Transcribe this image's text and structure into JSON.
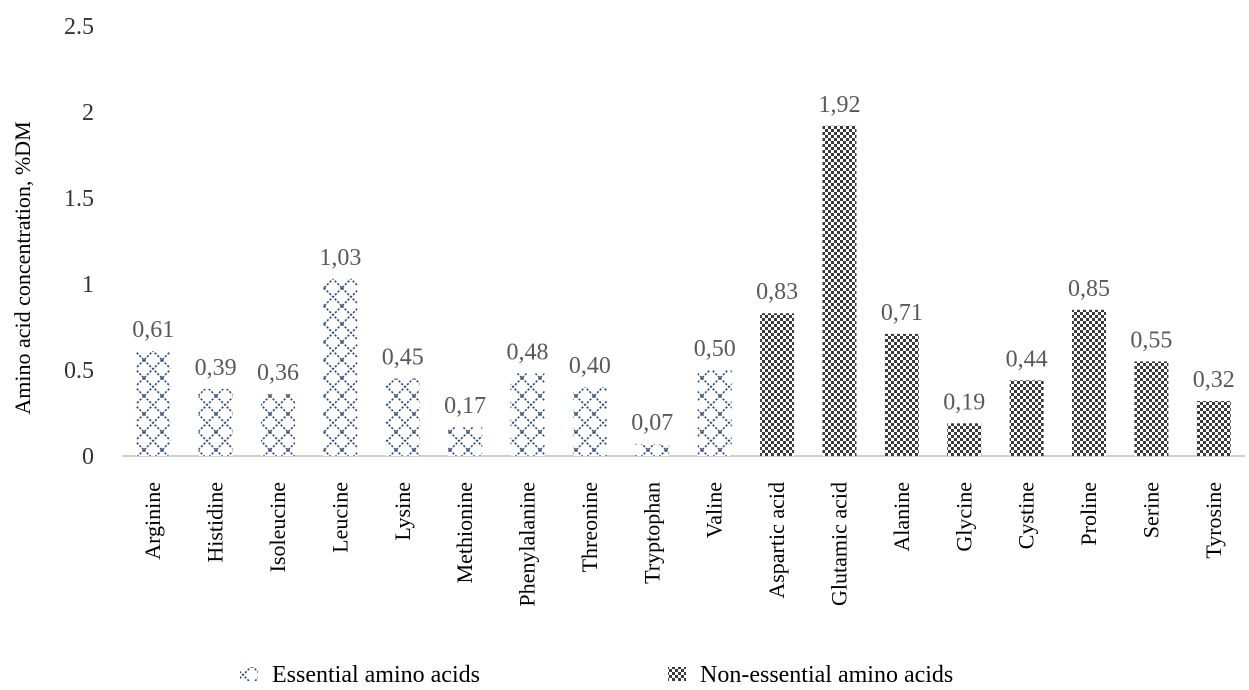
{
  "chart_data": {
    "type": "bar",
    "title": "",
    "xlabel": "",
    "ylabel": "Amino acid concentration, %DM",
    "ylim": [
      0,
      2.5
    ],
    "yticks": [
      "0",
      "0.5",
      "1",
      "1.5",
      "2",
      "2.5"
    ],
    "grid": false,
    "legend_position": "bottom",
    "categories": [
      "Arginine",
      "Histidine",
      "Isoleucine",
      "Leucine",
      "Lysine",
      "Methionine",
      "Phenylalanine",
      "Threonine",
      "Tryptophan",
      "Valine",
      "Aspartic acid",
      "Glutamic acid",
      "Alanine",
      "Glycine",
      "Cystine",
      "Proline",
      "Serine",
      "Tyrosine"
    ],
    "values": [
      0.61,
      0.39,
      0.36,
      1.03,
      0.45,
      0.17,
      0.48,
      0.4,
      0.07,
      0.5,
      0.83,
      1.92,
      0.71,
      0.19,
      0.44,
      0.85,
      0.55,
      0.32
    ],
    "value_labels": [
      "0,61",
      "0,39",
      "0,36",
      "1,03",
      "0,45",
      "0,17",
      "0,48",
      "0,40",
      "0,07",
      "0,50",
      "0,83",
      "1,92",
      "0,71",
      "0,19",
      "0,44",
      "0,85",
      "0,55",
      "0,32"
    ],
    "groups": [
      "essential",
      "essential",
      "essential",
      "essential",
      "essential",
      "essential",
      "essential",
      "essential",
      "essential",
      "essential",
      "non-essential",
      "non-essential",
      "non-essential",
      "non-essential",
      "non-essential",
      "non-essential",
      "non-essential",
      "non-essential"
    ],
    "series": [
      {
        "key": "essential",
        "name": "Essential amino acids",
        "pattern": "crosshatch",
        "color": "#2e4a7a"
      },
      {
        "key": "non-essential",
        "name": "Non-essential amino acids",
        "pattern": "checker",
        "color": "#3a3a3a"
      }
    ]
  }
}
